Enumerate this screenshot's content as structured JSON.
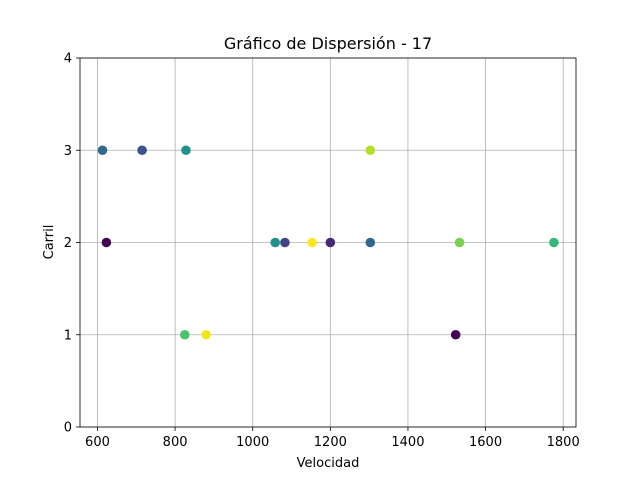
{
  "chart_data": {
    "type": "scatter",
    "title": "Gráfico de Dispersión -  17",
    "xlabel": "Velocidad",
    "ylabel": "Carril",
    "xlim": [
      555,
      1833
    ],
    "ylim": [
      0,
      4
    ],
    "xticks": [
      600,
      800,
      1000,
      1200,
      1400,
      1600,
      1800
    ],
    "yticks": [
      0,
      1,
      2,
      3,
      4
    ],
    "grid": true,
    "colormap": "viridis",
    "points": [
      {
        "x": 613,
        "y": 3,
        "color": "#31688e"
      },
      {
        "x": 715,
        "y": 3,
        "color": "#3b528b"
      },
      {
        "x": 828,
        "y": 3,
        "color": "#21918c"
      },
      {
        "x": 1303,
        "y": 3,
        "color": "#b5de2b"
      },
      {
        "x": 623,
        "y": 2,
        "color": "#440154"
      },
      {
        "x": 1058,
        "y": 2,
        "color": "#21918c"
      },
      {
        "x": 1083,
        "y": 2,
        "color": "#414487"
      },
      {
        "x": 1153,
        "y": 2,
        "color": "#fde725"
      },
      {
        "x": 1200,
        "y": 2,
        "color": "#482878"
      },
      {
        "x": 1303,
        "y": 2,
        "color": "#31688e"
      },
      {
        "x": 1533,
        "y": 2,
        "color": "#7ad151"
      },
      {
        "x": 1776,
        "y": 2,
        "color": "#35b779"
      },
      {
        "x": 825,
        "y": 1,
        "color": "#4ac16d"
      },
      {
        "x": 880,
        "y": 1,
        "color": "#f1e51d"
      },
      {
        "x": 1523,
        "y": 1,
        "color": "#440154"
      }
    ]
  }
}
